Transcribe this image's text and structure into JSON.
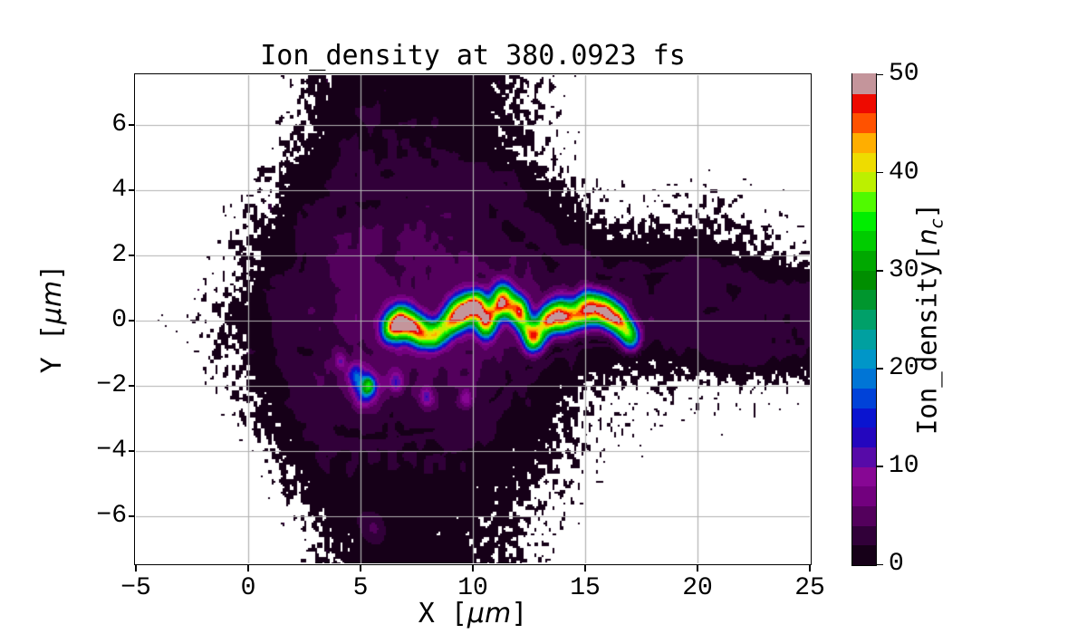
{
  "title": "Ion_density at 380.0923 fs",
  "xlabel": {
    "pre": "X [",
    "unit": "μm",
    "post": "]"
  },
  "ylabel": {
    "pre": "Y [",
    "unit": "μm",
    "post": "]"
  },
  "colorbar": {
    "label_pre": "Ion_density[",
    "label_var": "n",
    "label_sub": "c",
    "label_post": "]",
    "ticks": [
      0,
      10,
      20,
      30,
      40,
      50
    ],
    "vmin": 0,
    "vmax": 50,
    "n_bands": 25,
    "colormap": "nipy_spectral",
    "band_colors": [
      "#160018",
      "#310039",
      "#53005C",
      "#72007E",
      "#870794",
      "#570AA8",
      "#2406BE",
      "#0A14D0",
      "#0042D8",
      "#0075D6",
      "#0096C8",
      "#00A0A0",
      "#00A069",
      "#00962E",
      "#008E00",
      "#00A800",
      "#00CC00",
      "#00EE00",
      "#50FA00",
      "#BCF000",
      "#EEDC00",
      "#FFAE00",
      "#FF5200",
      "#EE0A00",
      "#C4959B"
    ]
  },
  "chart_data": {
    "type": "heatmap",
    "title": "Ion_density at 380.0923 fs",
    "time_fs": 380.0923,
    "xlabel": "X [μm]",
    "ylabel": "Y [μm]",
    "xlim": [
      -5,
      25
    ],
    "ylim": [
      -7.45,
      7.53
    ],
    "xticks": [
      -5,
      0,
      5,
      10,
      15,
      20,
      25
    ],
    "yticks": [
      -6,
      -4,
      -2,
      0,
      2,
      4,
      6
    ],
    "grid": true,
    "grid_color": "#b2b2b2",
    "colorbar_label": "Ion_density[n_c]",
    "colorbar_ticks": [
      0,
      10,
      20,
      30,
      40,
      50
    ],
    "vmin": 0,
    "vmax": 50,
    "levels_step": 2,
    "density_grid": {
      "note": "approx mean ion density (units n_c) on 1 um grid; 0 = vacuum/white, <2 speckled low-density, 2-6 purple plasma, filament hotspots added separately",
      "x_start": -5,
      "x_step": 1,
      "y_start": 7,
      "y_step": -1,
      "values": [
        [
          0,
          0,
          0,
          0,
          0,
          0,
          0,
          0.3,
          0.8,
          1.2,
          1.4,
          1.5,
          1.5,
          1.5,
          1.4,
          1.3,
          1.0,
          0.7,
          0.5,
          0.2,
          0,
          0,
          0,
          0,
          0,
          0,
          0,
          0,
          0,
          0,
          0
        ],
        [
          0,
          0,
          0,
          0,
          0,
          0,
          0.2,
          0.5,
          1.0,
          1.4,
          1.6,
          1.7,
          1.8,
          1.8,
          1.7,
          1.6,
          1.1,
          0.8,
          0.5,
          0.25,
          0.1,
          0,
          0,
          0,
          0,
          0,
          0,
          0,
          0,
          0,
          0
        ],
        [
          0,
          0,
          0,
          0,
          0,
          0.2,
          0.4,
          0.9,
          1.4,
          1.7,
          1.8,
          1.8,
          1.9,
          2.0,
          1.9,
          1.5,
          1.2,
          0.9,
          0.6,
          0.3,
          0.15,
          0.05,
          0,
          0,
          0,
          0,
          0,
          0,
          0,
          0,
          0
        ],
        [
          0,
          0,
          0,
          0,
          0.1,
          0.3,
          0.7,
          1.2,
          1.6,
          1.9,
          2.0,
          2.1,
          2.2,
          2.4,
          2.6,
          2.5,
          2.1,
          1.7,
          1.2,
          0.8,
          0.5,
          0.3,
          0.25,
          0.2,
          0.25,
          0.3,
          0.3,
          0.25,
          0.15,
          0.1,
          0.05
        ],
        [
          0,
          0,
          0,
          0,
          0.2,
          0.5,
          0.9,
          1.5,
          2.2,
          3.2,
          3.7,
          3.9,
          4.0,
          4.0,
          3.8,
          3.5,
          3.0,
          2.4,
          1.9,
          1.4,
          1.0,
          0.7,
          0.5,
          0.5,
          0.6,
          0.7,
          0.6,
          0.5,
          0.35,
          0.2,
          0.1
        ],
        [
          0,
          0,
          0,
          0.15,
          0.3,
          0.7,
          1.2,
          1.8,
          3.6,
          4.4,
          4.8,
          5.0,
          5.0,
          5.0,
          4.8,
          4.6,
          4.2,
          3.6,
          2.8,
          2.2,
          1.8,
          1.5,
          1.4,
          1.5,
          1.6,
          1.5,
          1.3,
          1.0,
          0.8,
          0.6,
          0.4
        ],
        [
          0,
          0,
          0.1,
          0.25,
          0.5,
          0.9,
          1.5,
          2.5,
          4.2,
          4.8,
          5.0,
          5.2,
          5.2,
          5.2,
          5.0,
          4.8,
          4.6,
          4.2,
          3.8,
          3.4,
          3.2,
          3.0,
          3.2,
          3.5,
          3.6,
          3.4,
          3.0,
          2.6,
          2.3,
          2.1,
          2.0
        ],
        [
          0,
          0.1,
          0.2,
          0.4,
          0.8,
          1.3,
          2.0,
          3.0,
          4.2,
          4.8,
          5.0,
          5.2,
          5.2,
          5.2,
          5.2,
          5.0,
          5.0,
          4.8,
          4.4,
          4.0,
          3.8,
          3.6,
          3.4,
          3.0,
          2.7,
          2.5,
          2.4,
          2.3,
          2.2,
          2.2,
          2.2
        ],
        [
          0,
          0.05,
          0.15,
          0.3,
          0.6,
          1.0,
          1.6,
          2.8,
          4.0,
          4.6,
          5.0,
          5.0,
          5.0,
          4.8,
          4.6,
          4.4,
          4.0,
          3.4,
          2.8,
          2.2,
          1.8,
          1.5,
          1.3,
          1.3,
          1.5,
          1.9,
          2.3,
          2.5,
          2.4,
          2.2,
          1.8
        ],
        [
          0,
          0,
          0,
          0.2,
          0.4,
          0.8,
          1.3,
          2.2,
          3.8,
          4.2,
          4.6,
          4.8,
          4.6,
          4.4,
          4.2,
          3.8,
          3.0,
          2.2,
          1.7,
          1.2,
          0.8,
          0.6,
          0.45,
          0.35,
          0.3,
          0.35,
          0.4,
          0.35,
          0.3,
          0.25,
          0.2
        ],
        [
          0,
          0,
          0,
          0,
          0.2,
          0.5,
          0.9,
          1.6,
          2.6,
          3.4,
          3.6,
          3.6,
          3.4,
          3.2,
          2.9,
          2.5,
          2.0,
          1.7,
          1.3,
          0.9,
          0.6,
          0.4,
          0.3,
          0.25,
          0.2,
          0.2,
          0.2,
          0.2,
          0.15,
          0.1,
          0
        ],
        [
          0,
          0,
          0,
          0,
          0,
          0.2,
          0.6,
          1.1,
          1.6,
          1.9,
          2.0,
          2.0,
          1.9,
          1.8,
          1.7,
          1.6,
          1.4,
          1.2,
          1.0,
          0.7,
          0.4,
          0.2,
          0.15,
          0.1,
          0.1,
          0.15,
          0.15,
          0.1,
          0.05,
          0,
          0
        ],
        [
          0,
          0,
          0,
          0,
          0,
          0,
          0.3,
          0.7,
          1.2,
          1.5,
          1.6,
          1.6,
          1.5,
          1.5,
          1.4,
          1.3,
          1.1,
          0.9,
          0.7,
          0.5,
          0.25,
          0.1,
          0,
          0,
          0,
          0,
          0,
          0,
          0,
          0,
          0
        ],
        [
          0,
          0,
          0,
          0,
          0,
          0,
          0,
          0.4,
          0.9,
          1.3,
          1.5,
          1.4,
          1.4,
          1.3,
          1.2,
          1.1,
          0.9,
          0.7,
          0.5,
          0.3,
          0.1,
          0,
          0,
          0,
          0,
          0,
          0,
          0,
          0,
          0,
          0
        ],
        [
          0,
          0,
          0,
          0,
          0,
          0,
          0,
          0,
          0.5,
          0.9,
          1.2,
          1.3,
          1.3,
          1.2,
          1.1,
          1.0,
          0.8,
          0.6,
          0.4,
          0.2,
          0,
          0,
          0,
          0,
          0,
          0,
          0,
          0,
          0,
          0,
          0
        ]
      ]
    },
    "filament_hotspots": [
      [
        6.55,
        -0.15,
        30,
        0.34
      ],
      [
        7.0,
        0.02,
        25,
        0.3
      ],
      [
        7.6,
        -0.22,
        23,
        0.3
      ],
      [
        8.35,
        -0.42,
        15,
        0.28
      ],
      [
        9.3,
        0.18,
        28,
        0.34
      ],
      [
        9.8,
        0.36,
        28,
        0.32
      ],
      [
        10.25,
        0.5,
        23,
        0.27
      ],
      [
        10.55,
        -0.15,
        26,
        0.28
      ],
      [
        11.3,
        0.68,
        28,
        0.32
      ],
      [
        12.05,
        0.28,
        23,
        0.28
      ],
      [
        12.7,
        -0.6,
        12,
        0.26
      ],
      [
        13.3,
        0.05,
        14,
        0.26
      ],
      [
        13.95,
        0.17,
        30,
        0.36
      ],
      [
        15.1,
        0.4,
        29,
        0.35
      ],
      [
        15.85,
        0.3,
        27,
        0.32
      ],
      [
        16.45,
        0.05,
        18,
        0.28
      ],
      [
        16.95,
        -0.45,
        11,
        0.26
      ],
      [
        5.2,
        -2.1,
        16,
        0.34
      ],
      [
        5.35,
        -2.0,
        21,
        0.18
      ],
      [
        4.75,
        -1.65,
        10,
        0.24
      ],
      [
        6.6,
        -1.9,
        8,
        0.2
      ],
      [
        7.95,
        -2.35,
        8,
        0.2
      ],
      [
        9.7,
        -2.4,
        7,
        0.2
      ],
      [
        4.1,
        -1.25,
        6,
        0.18
      ],
      [
        5.5,
        -6.4,
        2.6,
        0.3
      ]
    ],
    "filament_path": [
      [
        6.2,
        -0.3
      ],
      [
        6.8,
        0.0
      ],
      [
        7.3,
        -0.25
      ],
      [
        7.9,
        -0.5
      ],
      [
        8.6,
        -0.35
      ],
      [
        9.1,
        0.05
      ],
      [
        9.7,
        0.35
      ],
      [
        10.25,
        0.5
      ],
      [
        10.55,
        -0.1
      ],
      [
        11.0,
        0.3
      ],
      [
        11.3,
        0.65
      ],
      [
        11.7,
        0.5
      ],
      [
        12.05,
        0.28
      ],
      [
        12.4,
        -0.2
      ],
      [
        12.7,
        -0.6
      ],
      [
        13.05,
        -0.25
      ],
      [
        13.35,
        0.05
      ],
      [
        13.95,
        0.15
      ],
      [
        14.5,
        0.1
      ],
      [
        14.85,
        0.25
      ],
      [
        15.3,
        0.45
      ],
      [
        15.9,
        0.3
      ],
      [
        16.45,
        0.05
      ],
      [
        16.9,
        -0.4
      ],
      [
        17.25,
        -0.65
      ]
    ],
    "filament_path_amp": 6,
    "filament_path_sigma": 0.26
  }
}
